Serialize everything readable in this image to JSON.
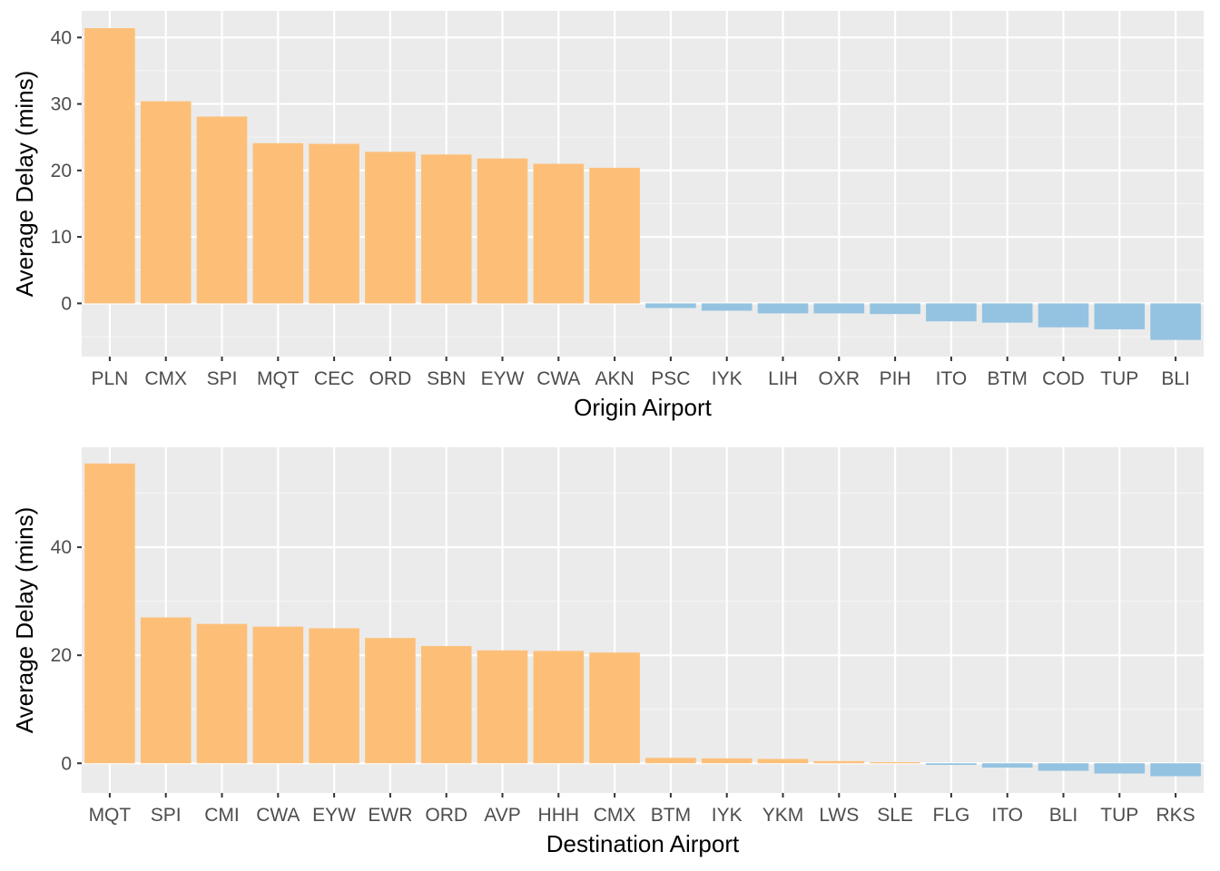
{
  "colors": {
    "panel_background": "#EBEBEB",
    "grid_major": "#FFFFFF",
    "grid_minor": "#F5F5F5",
    "positive_bar": "#FDBF78",
    "negative_bar": "#94C3E1",
    "tick_text": "#4D4D4D",
    "tick_mark": "#333333",
    "title_text": "#000000"
  },
  "chart_data": [
    {
      "type": "bar",
      "xlabel": "Origin Airport",
      "ylabel": "Average Delay (mins)",
      "grid": true,
      "legend": "none",
      "ylim": [
        -8,
        44
      ],
      "yticks": [
        0,
        10,
        20,
        30,
        40
      ],
      "categories": [
        "PLN",
        "CMX",
        "SPI",
        "MQT",
        "CEC",
        "ORD",
        "SBN",
        "EYW",
        "CWA",
        "AKN",
        "PSC",
        "IYK",
        "LIH",
        "OXR",
        "PIH",
        "ITO",
        "BTM",
        "COD",
        "TUP",
        "BLI"
      ],
      "values": [
        41.4,
        30.4,
        28.1,
        24.1,
        24.0,
        22.8,
        22.4,
        21.8,
        21.0,
        20.4,
        -0.7,
        -1.1,
        -1.5,
        -1.5,
        -1.6,
        -2.7,
        -2.9,
        -3.6,
        -3.9,
        -5.5
      ]
    },
    {
      "type": "bar",
      "xlabel": "Destination Airport",
      "ylabel": "Average Delay (mins)",
      "grid": true,
      "legend": "none",
      "ylim": [
        -5.5,
        58.5
      ],
      "yticks": [
        0,
        20,
        40
      ],
      "categories": [
        "MQT",
        "SPI",
        "CMI",
        "CWA",
        "EYW",
        "EWR",
        "ORD",
        "AVP",
        "HHH",
        "CMX",
        "BTM",
        "IYK",
        "YKM",
        "LWS",
        "SLE",
        "FLG",
        "ITO",
        "BLI",
        "TUP",
        "RKS"
      ],
      "values": [
        55.5,
        27.0,
        25.8,
        25.3,
        25.0,
        23.2,
        21.7,
        20.9,
        20.8,
        20.5,
        1.0,
        0.9,
        0.8,
        0.4,
        0.2,
        -0.3,
        -0.8,
        -1.4,
        -1.9,
        -2.4
      ]
    }
  ]
}
